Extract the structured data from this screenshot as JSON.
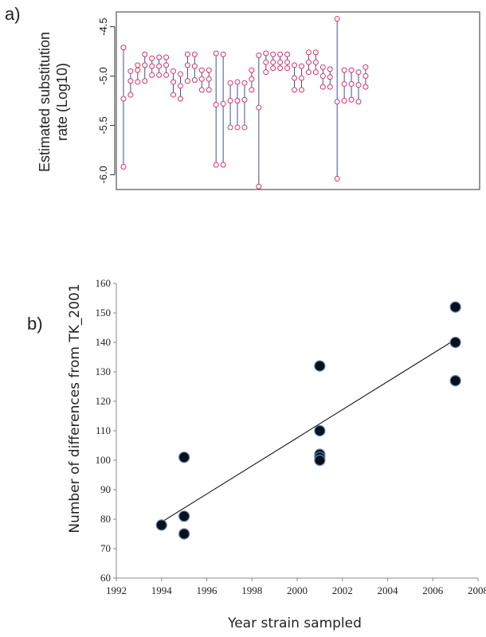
{
  "chart_data": [
    {
      "panel_label": "a)",
      "type": "scatter",
      "subtype": "interval-dot-plot",
      "ylabel": "Estimated substitution rate (Log10)",
      "ylabel_lines": [
        "Estimated substitution",
        "rate (Log10)"
      ],
      "yticks": [
        "-4.5",
        "-5.0",
        "-5.5",
        "-6.0"
      ],
      "ylim": [
        -6.15,
        -4.35
      ],
      "xlim": [
        0,
        51
      ],
      "grid": false,
      "colors": {
        "point": "#d6336c",
        "line": "#3d4fa0",
        "frame": "#333333"
      },
      "series": [
        {
          "name": "",
          "points": [
            [
              1,
              -4.71,
              -5.23,
              -5.92
            ],
            [
              2,
              -4.95,
              -5.05,
              -5.19
            ],
            [
              3,
              -4.94,
              -4.89,
              -5.06
            ],
            [
              4,
              -4.78,
              -4.89,
              -5.05
            ],
            [
              5,
              -4.82,
              -4.9,
              -4.99
            ],
            [
              6,
              -4.81,
              -4.9,
              -4.99
            ],
            [
              7,
              -4.81,
              -4.89,
              -4.99
            ],
            [
              8,
              -4.95,
              -5.06,
              -5.19
            ],
            [
              9,
              -4.98,
              -5.1,
              -5.23
            ],
            [
              10,
              -4.78,
              -4.89,
              -5.05
            ],
            [
              11,
              -4.78,
              -4.9,
              -5.04
            ],
            [
              12,
              -4.94,
              -5.03,
              -5.14
            ],
            [
              13,
              -4.94,
              -5.03,
              -5.14
            ],
            [
              14,
              -4.77,
              -5.29,
              -5.9
            ],
            [
              15,
              -4.78,
              -5.28,
              -5.9
            ],
            [
              16,
              -5.07,
              -5.25,
              -5.52
            ],
            [
              17,
              -5.06,
              -5.25,
              -5.52
            ],
            [
              18,
              -5.07,
              -5.24,
              -5.52
            ],
            [
              19,
              -4.94,
              -5.03,
              -5.14
            ],
            [
              20,
              -4.79,
              -5.32,
              -6.12
            ],
            [
              21,
              -4.77,
              -4.86,
              -4.96
            ],
            [
              22,
              -4.78,
              -4.86,
              -4.92
            ],
            [
              23,
              -4.78,
              -4.86,
              -4.92
            ],
            [
              24,
              -4.78,
              -4.86,
              -4.92
            ],
            [
              25,
              -4.89,
              -5.02,
              -5.14
            ],
            [
              26,
              -4.9,
              -5.02,
              -5.14
            ],
            [
              27,
              -4.76,
              -4.86,
              -4.96
            ],
            [
              28,
              -4.76,
              -4.86,
              -4.96
            ],
            [
              29,
              -4.91,
              -5.0,
              -5.11
            ],
            [
              30,
              -4.93,
              -5.01,
              -5.11
            ],
            [
              31,
              -4.42,
              -5.26,
              -6.04
            ],
            [
              32,
              -4.94,
              -5.08,
              -5.25
            ],
            [
              33,
              -4.94,
              -5.08,
              -5.24
            ],
            [
              34,
              -4.96,
              -5.09,
              -5.26
            ],
            [
              35,
              -4.91,
              -5.0,
              -5.11
            ]
          ]
        }
      ]
    },
    {
      "panel_label": "b)",
      "type": "scatter",
      "xlabel": "Year strain sampled",
      "ylabel": "Number of differences from TK_2001",
      "xticks": [
        "1992",
        "1994",
        "1996",
        "1998",
        "2000",
        "2002",
        "2004",
        "2006",
        "2008"
      ],
      "yticks": [
        "60",
        "70",
        "80",
        "90",
        "100",
        "110",
        "120",
        "130",
        "140",
        "150",
        "160"
      ],
      "xlim": [
        1992,
        2008
      ],
      "ylim": [
        60,
        160
      ],
      "grid": false,
      "colors": {
        "point": "#0a0f1e",
        "point_edge": "#5f86a8",
        "line": "#000000"
      },
      "series": [
        {
          "name": "",
          "x": [
            1994,
            1995,
            1995,
            1995,
            2001,
            2001,
            2001,
            2001,
            2001,
            2007,
            2007,
            2007
          ],
          "y": [
            78,
            101,
            81,
            75,
            132,
            110,
            102,
            101,
            100,
            152,
            140,
            127
          ]
        }
      ],
      "trendline": {
        "x": [
          1994,
          2007
        ],
        "y": [
          79,
          141
        ]
      }
    }
  ]
}
